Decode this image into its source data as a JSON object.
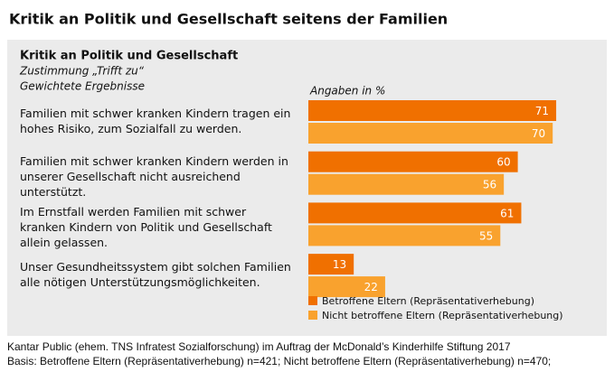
{
  "chart_data": {
    "type": "bar",
    "orientation": "horizontal",
    "title": "Kritik an Politik und Gesellschaft seitens der Familien",
    "panel_title": "Kritik an Politik und Gesellschaft",
    "subtitle": [
      "Zustimmung „Trifft zu“",
      "Gewichtete Ergebnisse"
    ],
    "unit_label": "Angaben in %",
    "categories": [
      "Familien mit schwer kranken Kindern tragen ein\nhohes Risiko, zum Sozialfall zu werden.",
      "Familien mit schwer kranken Kindern werden in\nunserer Gesellschaft nicht ausreichend\nunterstützt.",
      "Im Ernstfall werden Familien mit schwer\nkranken Kindern von Politik und Gesellschaft\nallein gelassen.",
      "Unser Gesundheitssystem gibt solchen Familien\nalle nötigen Unterstützungsmöglichkeiten."
    ],
    "series": [
      {
        "name": "Betroffene Eltern (Repräsentativerhebung)",
        "color": "#f07000",
        "values": [
          71,
          60,
          61,
          13
        ]
      },
      {
        "name": "Nicht betroffene Eltern (Repräsentativerhebung)",
        "color": "#f9a22e",
        "values": [
          70,
          56,
          55,
          22
        ]
      }
    ],
    "xlim": [
      0,
      100
    ],
    "footnotes": [
      "Kantar Public (ehem. TNS Infratest Sozialforschung) im Auftrag der McDonald’s Kinderhilfe Stiftung 2017",
      "Basis: Betroffene Eltern (Repräsentativerhebung) n=421; Nicht betroffene Eltern (Repräsentativerhebung) n=470;"
    ]
  }
}
